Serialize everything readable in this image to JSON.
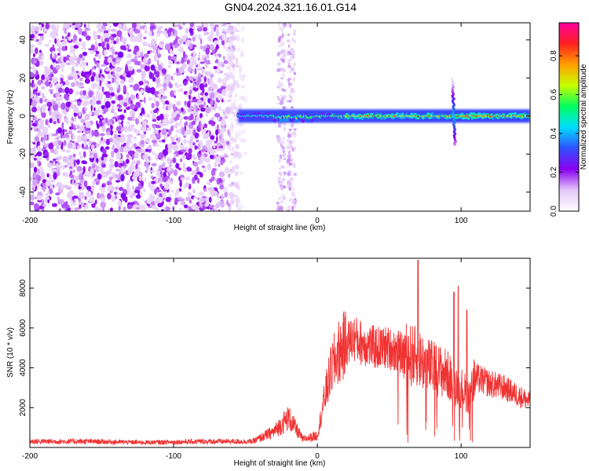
{
  "title": "GN04.2024.321.16.01.G14",
  "chart_data": [
    {
      "type": "heatmap",
      "xlabel": "Height of straight line (km)",
      "ylabel": "Frequency (Hz)",
      "xlim": [
        -200,
        148
      ],
      "ylim": [
        -50,
        49
      ],
      "x_ticks": [
        -200,
        -100,
        0,
        100
      ],
      "y_ticks": [
        -40,
        -20,
        0,
        20,
        40
      ],
      "colorbar": {
        "label": "Normalized spectral amplitude",
        "range": [
          0.0,
          0.97
        ],
        "ticks": [
          "0.0",
          "0.2",
          "0.4",
          "0.6",
          "0.8"
        ],
        "colors": [
          "#ffffff",
          "#e4c8f8",
          "#8a00f0",
          "#3050ff",
          "#00dcff",
          "#00ff60",
          "#c8ff00",
          "#ffa000",
          "#ff2020",
          "#ff00a0"
        ]
      },
      "noise_region_x": [
        -200,
        -50
      ],
      "ridge": {
        "x_start": -55,
        "x_end": 148,
        "frequency_center": 0,
        "spike_x": 95,
        "spike_frequency_range": [
          -15,
          20
        ]
      }
    },
    {
      "type": "line",
      "xlabel": "Height of straight line (km)",
      "ylabel": "SNR (10 * v/v)",
      "xlim": [
        -200,
        148
      ],
      "ylim": [
        0,
        9500
      ],
      "x_ticks": [
        -200,
        -100,
        0,
        100
      ],
      "y_ticks": [
        2000,
        4000,
        6000,
        8000
      ],
      "color": "#f03232",
      "x": [
        -200,
        -160,
        -120,
        -80,
        -60,
        -45,
        -30,
        -20,
        -10,
        0,
        5,
        10,
        15,
        20,
        25,
        30,
        40,
        50,
        60,
        70,
        75,
        80,
        90,
        95,
        100,
        105,
        110,
        120,
        130,
        140,
        148
      ],
      "y": [
        300,
        300,
        250,
        300,
        300,
        300,
        800,
        1500,
        400,
        600,
        2500,
        4000,
        4800,
        5200,
        5500,
        5300,
        5000,
        5000,
        4700,
        4500,
        4200,
        4000,
        3700,
        3200,
        3000,
        2600,
        3500,
        3200,
        3000,
        2600,
        2300
      ],
      "peaks": [
        {
          "x": 70,
          "y": 9400
        },
        {
          "x": 98,
          "y": 8100
        },
        {
          "x": 95,
          "y": 7800
        },
        {
          "x": 104,
          "y": 6900
        }
      ]
    }
  ]
}
